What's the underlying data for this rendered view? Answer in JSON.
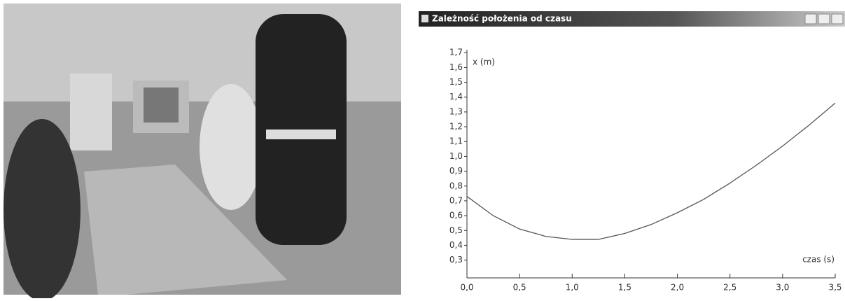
{
  "window": {
    "title": "Zależność położenia od czasu"
  },
  "chart_data": {
    "type": "line",
    "y_label": "x (m)",
    "x_label": "czas (s)",
    "x": [
      0,
      0.25,
      0.5,
      0.75,
      1.0,
      1.25,
      1.5,
      1.75,
      2.0,
      2.25,
      2.5,
      2.75,
      3.0,
      3.25,
      3.5
    ],
    "series": [
      {
        "color": "#555555",
        "values": [
          0.73,
          0.6,
          0.51,
          0.46,
          0.44,
          0.44,
          0.48,
          0.54,
          0.62,
          0.71,
          0.82,
          0.94,
          1.07,
          1.21,
          1.36
        ]
      }
    ],
    "xlim": [
      0,
      3.5
    ],
    "ylim": [
      0.18,
      1.72
    ],
    "xticks": [
      {
        "value": 0,
        "label": "0,0"
      },
      {
        "value": 0.5,
        "label": "0,5"
      },
      {
        "value": 1.0,
        "label": "1,0"
      },
      {
        "value": 1.5,
        "label": "1,5"
      },
      {
        "value": 2.0,
        "label": "2,0"
      },
      {
        "value": 2.5,
        "label": "2,5"
      },
      {
        "value": 3.0,
        "label": "3,0"
      },
      {
        "value": 3.5,
        "label": "3,5"
      }
    ],
    "yticks": [
      {
        "value": 0.3,
        "label": "0,3"
      },
      {
        "value": 0.4,
        "label": "0,4"
      },
      {
        "value": 0.5,
        "label": "0,5"
      },
      {
        "value": 0.6,
        "label": "0,6"
      },
      {
        "value": 0.7,
        "label": "0,7"
      },
      {
        "value": 0.8,
        "label": "0,8"
      },
      {
        "value": 0.9,
        "label": "0,9"
      },
      {
        "value": 1.0,
        "label": "1,0"
      },
      {
        "value": 1.1,
        "label": "1,1"
      },
      {
        "value": 1.2,
        "label": "1,2"
      },
      {
        "value": 1.3,
        "label": "1,3"
      },
      {
        "value": 1.4,
        "label": "1,4"
      },
      {
        "value": 1.5,
        "label": "1,5"
      },
      {
        "value": 1.6,
        "label": "1,6"
      },
      {
        "value": 1.7,
        "label": "1,7"
      }
    ],
    "grid": false
  }
}
